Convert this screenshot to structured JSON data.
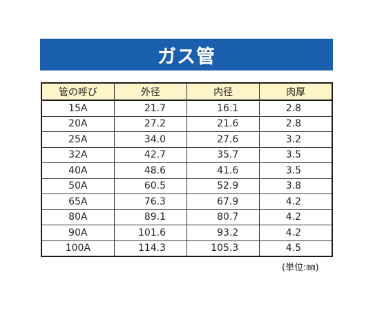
{
  "banner": {
    "title": "ガス管"
  },
  "table": {
    "headers": [
      "管の呼び",
      "外径",
      "内径",
      "肉厚"
    ],
    "rows": [
      [
        "15A",
        "21.7",
        "16.1",
        "2.8"
      ],
      [
        "20A",
        "27.2",
        "21.6",
        "2.8"
      ],
      [
        "25A",
        "34.0",
        "27.6",
        "3.2"
      ],
      [
        "32A",
        "42.7",
        "35.7",
        "3.5"
      ],
      [
        "40A",
        "48.6",
        "41.6",
        "3.5"
      ],
      [
        "50A",
        "60.5",
        "52.9",
        "3.8"
      ],
      [
        "65A",
        "76.3",
        "67.9",
        "4.2"
      ],
      [
        "80A",
        "89.1",
        "80.7",
        "4.2"
      ],
      [
        "90A",
        "101.6",
        "93.2",
        "4.2"
      ],
      [
        "100A",
        "114.3",
        "105.3",
        "4.5"
      ]
    ]
  },
  "unit_note": "(単位:㎜)",
  "colors": {
    "banner_bg": "#1a5fae",
    "header_bg": "#fdf5c9"
  }
}
